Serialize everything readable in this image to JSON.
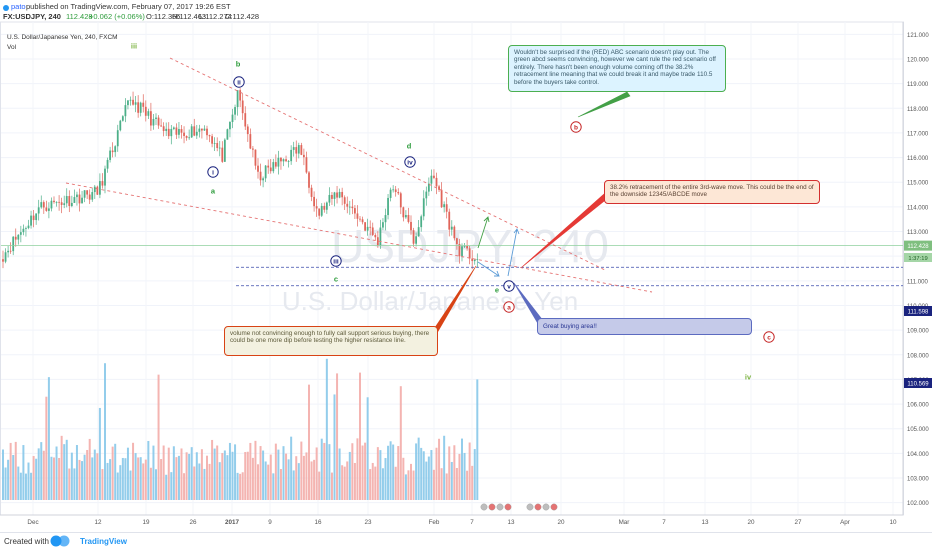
{
  "header": {
    "author": "pato",
    "published": "published on TradingView.com, February 07, 2017 19:26 EST",
    "symbol_line": "FX:USDJPY, 240",
    "last": "112.428",
    "change": "+0.062 (+0.06%)",
    "open": "112.366",
    "high": "112.463",
    "low": "112.274",
    "close": "112.428"
  },
  "legend": {
    "title": "U.S. Dollar/Japanese Yen, 240, FXCM",
    "volume_label": "Vol"
  },
  "watermark": {
    "symbol": "USDJPY, 240",
    "name": "U.S. Dollar/Japanese Yen"
  },
  "colors": {
    "up": "#4caf88",
    "down": "#e0655a",
    "vol_up": "#80c4e8",
    "vol_down": "#f2a7a3",
    "red_wave": "#c62828",
    "green_wave": "#2e9c3c",
    "blue_wave": "#1a237e",
    "olive": "#7cb342"
  },
  "chart_data": {
    "type": "candlestick",
    "y_axis": {
      "min": 101.5,
      "max": 121.5,
      "ticks": [
        "121.000",
        "120.000",
        "119.000",
        "118.000",
        "117.000",
        "116.000",
        "115.000",
        "114.000",
        "113.000",
        "112.000",
        "111.000",
        "110.000",
        "109.000",
        "108.000",
        "107.000",
        "106.000",
        "105.000",
        "104.000",
        "103.000",
        "102.000"
      ],
      "tick_values": [
        121,
        120,
        119,
        118,
        117,
        116,
        115,
        114,
        113,
        112,
        111,
        110,
        109,
        108,
        107,
        106,
        105,
        104,
        103,
        102
      ]
    },
    "x_axis_labels": [
      "Dec",
      "12",
      "19",
      "26",
      "2017",
      "9",
      "16",
      "23",
      "Feb",
      "7",
      "13",
      "20",
      "Mar",
      "7",
      "13",
      "20",
      "27",
      "Apr",
      "10"
    ],
    "price_badges": [
      {
        "value": 112.428,
        "label": "112.428"
      },
      {
        "value": 111.598,
        "label": "111.598"
      },
      {
        "value": 110.569,
        "label": "110.569"
      }
    ],
    "countdown": "1:37:19",
    "price_path": [
      [
        112.0,
        "Dec 1"
      ],
      [
        114.0,
        "Dec 7"
      ],
      [
        114.6,
        "Dec 12"
      ],
      [
        118.4,
        "Dec 15"
      ],
      [
        116.9,
        "Dec 21"
      ],
      [
        117.2,
        "Dec 28"
      ],
      [
        116.0,
        "Jan 3"
      ],
      [
        118.6,
        "Jan 3"
      ],
      [
        115.2,
        "Jan 5"
      ],
      [
        116.4,
        "Jan 10"
      ],
      [
        113.7,
        "Jan 12"
      ],
      [
        114.6,
        "Jan 16"
      ],
      [
        112.6,
        "Jan 19"
      ],
      [
        115.0,
        "Jan 23"
      ],
      [
        112.6,
        "Jan 27"
      ],
      [
        115.4,
        "Jan 31"
      ],
      [
        112.3,
        "Feb 3"
      ],
      [
        111.9,
        "Feb 7"
      ]
    ],
    "horizontal_levels": [
      {
        "value": 112.428,
        "style": "solid",
        "color": "#8fd19e"
      },
      {
        "value": 111.55,
        "style": "dashed",
        "color": "#3949ab"
      },
      {
        "value": 110.8,
        "style": "dashed",
        "color": "#3949ab"
      }
    ]
  },
  "wave_labels": [
    {
      "text": "iii",
      "color_key": "olive",
      "kind": "plain"
    },
    {
      "text": "b",
      "color_key": "green_wave",
      "kind": "plain"
    },
    {
      "text": "ii",
      "color_key": "blue_wave",
      "kind": "circle"
    },
    {
      "text": "i",
      "color_key": "blue_wave",
      "kind": "circle"
    },
    {
      "text": "a",
      "color_key": "green_wave",
      "kind": "plain"
    },
    {
      "text": "d",
      "color_key": "green_wave",
      "kind": "plain"
    },
    {
      "text": "iv",
      "color_key": "blue_wave",
      "kind": "circle"
    },
    {
      "text": "iii",
      "color_key": "blue_wave",
      "kind": "circle"
    },
    {
      "text": "c",
      "color_key": "green_wave",
      "kind": "plain"
    },
    {
      "text": "e",
      "color_key": "green_wave",
      "kind": "plain"
    },
    {
      "text": "v",
      "color_key": "blue_wave",
      "kind": "circle"
    },
    {
      "text": "a",
      "color_key": "red_wave",
      "kind": "circle"
    },
    {
      "text": "b",
      "color_key": "red_wave",
      "kind": "circle"
    },
    {
      "text": "c",
      "color_key": "red_wave",
      "kind": "circle"
    },
    {
      "text": "iv",
      "color_key": "olive",
      "kind": "plain"
    }
  ],
  "notes": {
    "note_abc": "Wouldn't be surprised if the (RED) ABC scenario doesn't play out. The green abcd seems convincing, however we cant rule the red scenario off entirely. There hasn't been enough volume coming off the 38.2% retracement line meaning that we could break it and maybe trade 110.5 before the buyers take control.",
    "note_retrace": "38.2% retracement of the entire 3rd-wave move. This could be the end of the downside 12345/ABCDE move",
    "note_buying": "Great buying area!!",
    "note_volume": "volume not convincing enough to fully call support serious buying, there could be one more dip before testing the higher resistance line."
  },
  "footer": {
    "created_with": "Created with",
    "brand": "TradingView"
  }
}
